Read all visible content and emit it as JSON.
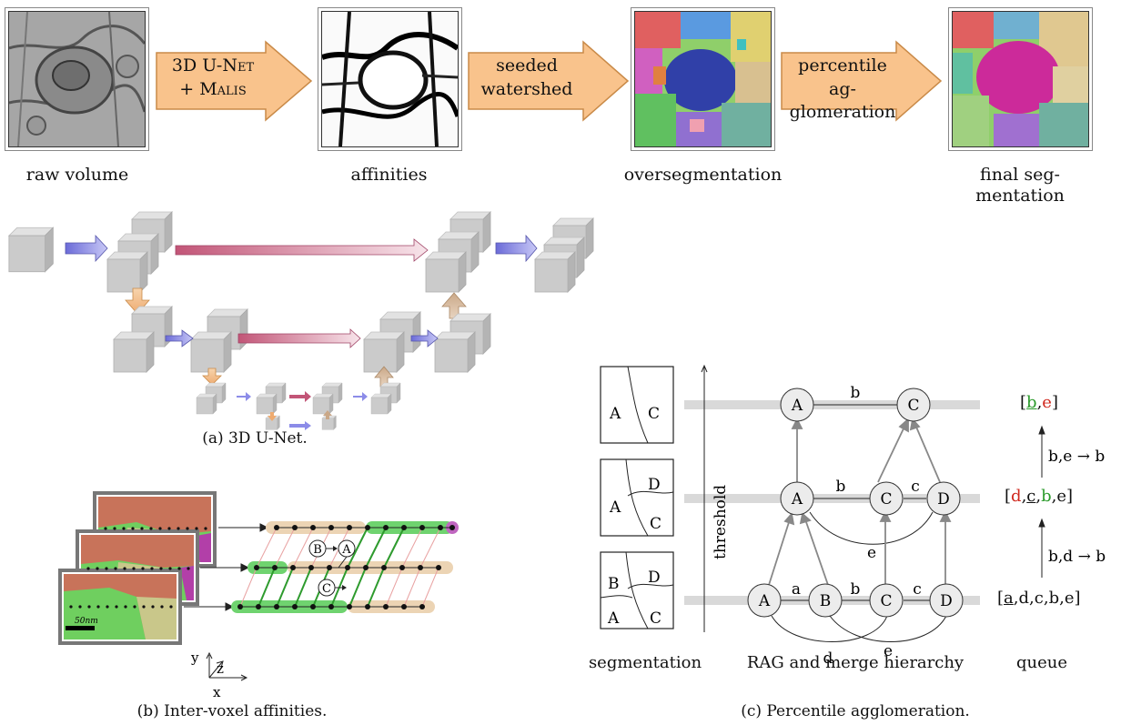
{
  "pipeline": {
    "raw_label": "raw volume",
    "affinities_label": "affinities",
    "overseg_label": "oversegmentation",
    "final_label_1": "final seg-",
    "final_label_2": "mentation",
    "arrow1_line1": "3D U-Net",
    "arrow1_line2": "+ Malis",
    "arrow2_line1": "seeded",
    "arrow2_line2": "watershed",
    "arrow3_line1": "percentile ag-",
    "arrow3_line2": "glomeration"
  },
  "panel_a": {
    "caption": "(a) 3D U-Net."
  },
  "panel_b": {
    "caption": "(b) Inter-voxel affinities.",
    "scale_bar": "50nm",
    "axis_y": "y",
    "axis_z": "z",
    "axis_x": "x",
    "node_b": "B",
    "node_a": "A",
    "node_c": "C"
  },
  "panel_c": {
    "caption": "(c) Percentile agglomeration.",
    "segmentation_label": "segmentation",
    "rag_label": "RAG and merge hierarchy",
    "queue_label": "queue",
    "threshold_label": "threshold",
    "seg_top": {
      "left": "A",
      "right": "C"
    },
    "seg_mid": {
      "left": "A",
      "top_right": "D",
      "bottom_right": "C"
    },
    "seg_bot": {
      "top_left": "B",
      "bottom_left": "A",
      "top_right": "D",
      "bottom_right": "C"
    },
    "row_top": {
      "nodes": [
        "A",
        "C"
      ],
      "edge": "b"
    },
    "row_mid": {
      "nodes": [
        "A",
        "C",
        "D"
      ],
      "edges": [
        "b",
        "c"
      ],
      "curve_edge": "e"
    },
    "row_bot": {
      "nodes": [
        "A",
        "B",
        "C",
        "D"
      ],
      "edges": [
        "a",
        "b",
        "c"
      ],
      "curve_edges": [
        "d",
        "e"
      ]
    },
    "queue_top": {
      "open": "[",
      "items": [
        "b",
        "e"
      ],
      "close": "]"
    },
    "queue_mid": {
      "open": "[",
      "items": [
        "d",
        "c",
        "b",
        "e"
      ],
      "close": "]"
    },
    "queue_bot": {
      "open": "[",
      "items": [
        "a",
        "d",
        "c",
        "b",
        "e"
      ],
      "close": "]"
    },
    "merge_upper": "b,e → b",
    "merge_lower": "b,d → b",
    "colors": {
      "red": "#d0281e",
      "green": "#2a9a2a",
      "gray_bar": "#d9d9d9"
    }
  },
  "colors": {
    "arrow_fill": "#f9c38c",
    "arrow_stroke": "#c98a48",
    "blue_arrow": "#8c8ce8",
    "pink_arrow": "#d77b95",
    "tan_arrow": "#f2c89a",
    "cube": "#c8c8c8"
  }
}
